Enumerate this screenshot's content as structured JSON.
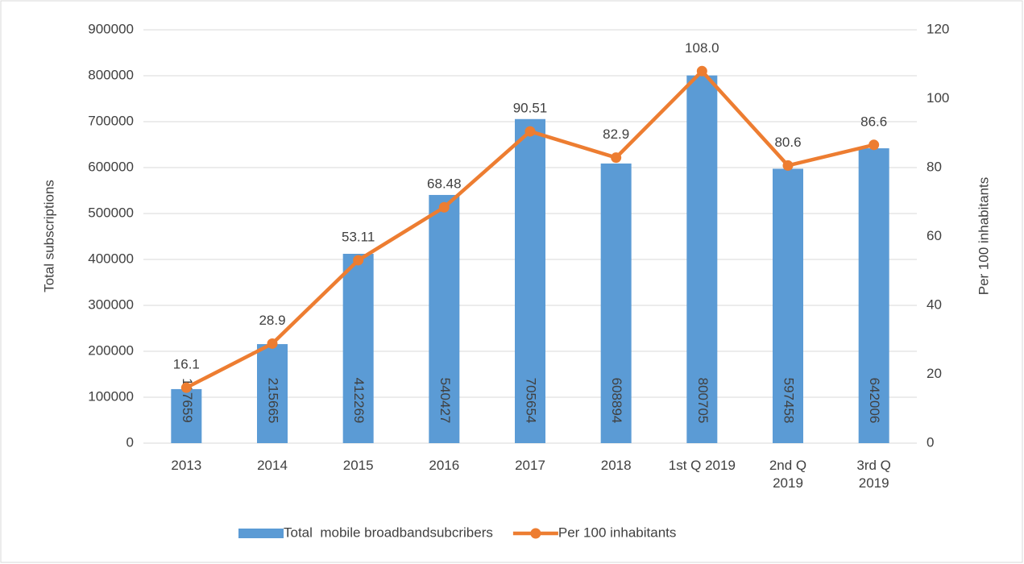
{
  "chart_data": {
    "type": "combo",
    "categories": [
      "2013",
      "2014",
      "2015",
      "2016",
      "2017",
      "2018",
      "1st Q 2019",
      "2nd Q 2019",
      "3rd Q 2019"
    ],
    "series": [
      {
        "name": "Total  mobile broadbandsubcribers",
        "type": "bar",
        "color": "#5b9bd5",
        "values": [
          117659,
          215665,
          412269,
          540427,
          705654,
          608894,
          800705,
          597458,
          642006
        ]
      },
      {
        "name": "Per 100 inhabitants",
        "type": "line",
        "axis": "y2",
        "color": "#ed7d31",
        "values": [
          16.1,
          28.9,
          53.11,
          68.48,
          90.51,
          82.9,
          108.0,
          80.6,
          86.6
        ],
        "value_labels": [
          "16.1",
          "28.9",
          "53.11",
          "68.48",
          "90.51",
          "82.9",
          "108.0",
          "80.6",
          "86.6"
        ]
      }
    ],
    "ylabel": "Total subscriptions",
    "y2label": "Per 100 inhabitants",
    "ylim": [
      0,
      900000
    ],
    "yticks": [
      0,
      100000,
      200000,
      300000,
      400000,
      500000,
      600000,
      700000,
      800000,
      900000
    ],
    "y2lim": [
      0,
      120
    ],
    "y2ticks": [
      0,
      20,
      40,
      60,
      80,
      100,
      120
    ],
    "grid": true,
    "legend": "bottom"
  }
}
